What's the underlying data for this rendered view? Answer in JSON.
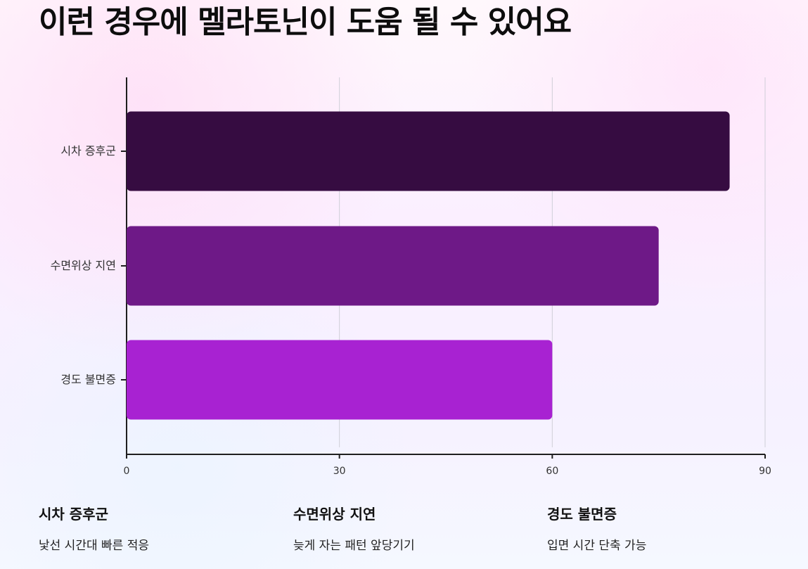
{
  "page": {
    "title": "이런 경우에 멜라토닌이 도움 될 수 있어요"
  },
  "chart_data": {
    "type": "bar",
    "orientation": "horizontal",
    "categories": [
      "시차 증후군",
      "수면위상 지연",
      "경도 불면증"
    ],
    "values": [
      85,
      75,
      60
    ],
    "xlim": [
      0,
      90
    ],
    "xticks": [
      "0",
      "30",
      "60",
      "90"
    ],
    "grid": true,
    "colors": [
      "#360C41",
      "#6E1987",
      "#A822D2"
    ]
  },
  "cards": [
    {
      "title": "시차 증후군",
      "description": "낯선 시간대 빠른 적응"
    },
    {
      "title": "수면위상 지연",
      "description": "늦게 자는 패턴 앞당기기"
    },
    {
      "title": "경도 불면증",
      "description": "입면 시간 단축 가능"
    }
  ]
}
